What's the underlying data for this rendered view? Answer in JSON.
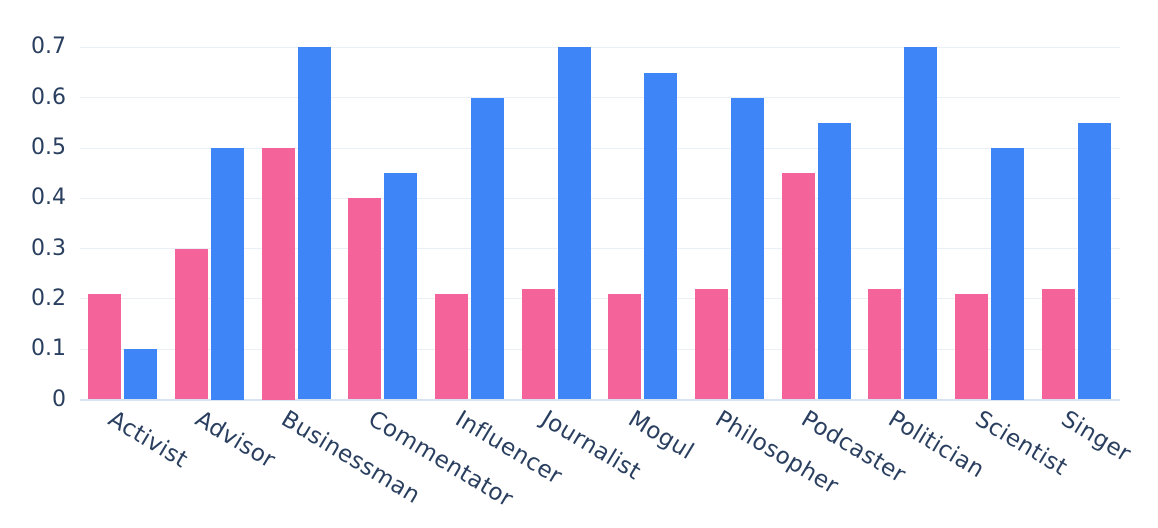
{
  "chart_data": {
    "type": "bar",
    "bar_mode": "grouped",
    "title": "",
    "xlabel": "",
    "ylabel": "",
    "legend": "none",
    "grid": true,
    "background": "#ffffff",
    "text_color": "#2a3f5f",
    "grid_color": "#ebf0f8",
    "zero_line_color": "#d8e2f0",
    "tick_angle_deg": 31,
    "categories": [
      "Activist",
      "Advisor",
      "Businessman",
      "Commentator",
      "Influencer",
      "Journalist",
      "Mogul",
      "Philosopher",
      "Podcaster",
      "Politician",
      "Scientist",
      "Singer"
    ],
    "series": [
      {
        "name": "pink",
        "color": "#f5639b",
        "values": [
          0.21,
          0.3,
          0.5,
          0.4,
          0.21,
          0.22,
          0.21,
          0.22,
          0.45,
          0.22,
          0.21,
          0.22
        ]
      },
      {
        "name": "blue",
        "color": "#3e86f8",
        "values": [
          0.1,
          0.5,
          0.7,
          0.45,
          0.6,
          0.7,
          0.65,
          0.6,
          0.55,
          0.7,
          0.5,
          0.55
        ]
      }
    ],
    "yticks": [
      0,
      0.1,
      0.2,
      0.3,
      0.4,
      0.5,
      0.6,
      0.7
    ],
    "ytick_labels": [
      "0",
      "0.1",
      "0.2",
      "0.3",
      "0.4",
      "0.5",
      "0.6",
      "0.7"
    ],
    "ylim": [
      0,
      0.77
    ]
  }
}
